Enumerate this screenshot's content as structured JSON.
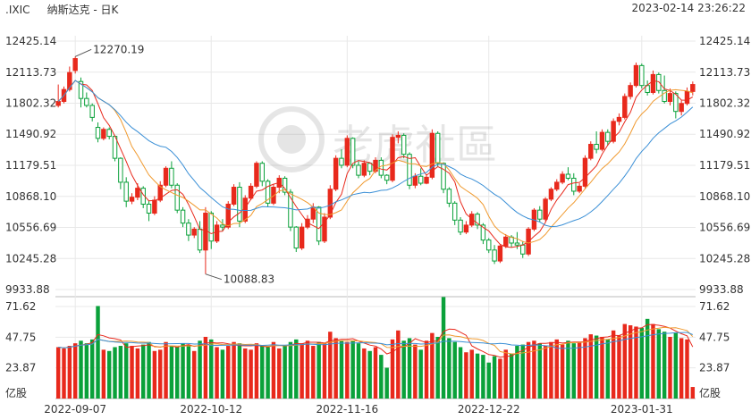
{
  "header": {
    "symbol": ".IXIC",
    "name": "纳斯达克 - 日K",
    "datetime": "2023-02-14 23:26:22"
  },
  "watermark": "老虎社區",
  "colors": {
    "up": "#e8291c",
    "down": "#0aa13a",
    "ma5": "#e8291c",
    "ma10": "#f09a2f",
    "ma20": "#3a8fd6",
    "grid": "#e8e8e8",
    "text": "#333333"
  },
  "chart_data": {
    "type": "candlestick",
    "price_axis": {
      "ticks": [
        "12425.14",
        "12113.73",
        "11802.32",
        "11490.92",
        "11179.51",
        "10868.10",
        "10556.69",
        "10245.28",
        "9933.88"
      ],
      "ylim": [
        9933.88,
        12425.14
      ]
    },
    "volume_axis": {
      "ticks": [
        "71.62",
        "47.75",
        "23.87"
      ],
      "unit": "亿股",
      "ylim": [
        0,
        71.62
      ]
    },
    "x_ticks": [
      {
        "label": "2022-09-07",
        "index": 3
      },
      {
        "label": "2022-10-12",
        "index": 27
      },
      {
        "label": "2022-11-16",
        "index": 51
      },
      {
        "label": "2022-12-22",
        "index": 76
      },
      {
        "label": "2023-01-31",
        "index": 103
      }
    ],
    "annotations": [
      {
        "text": "12270.19",
        "index": 3,
        "value": 12270.19
      },
      {
        "text": "10088.83",
        "index": 26,
        "value": 10088.83
      }
    ],
    "candles": [
      {
        "o": 11780,
        "h": 11990,
        "l": 11760,
        "c": 11820,
        "v": 40
      },
      {
        "o": 11820,
        "h": 11970,
        "l": 11800,
        "c": 11940,
        "v": 39
      },
      {
        "o": 11940,
        "h": 12170,
        "l": 11920,
        "c": 12110,
        "v": 41
      },
      {
        "o": 12130,
        "h": 12270.19,
        "l": 12100,
        "c": 12250,
        "v": 43
      },
      {
        "o": 12020,
        "h": 12060,
        "l": 11760,
        "c": 11850,
        "v": 45
      },
      {
        "o": 11850,
        "h": 11910,
        "l": 11760,
        "c": 11780,
        "v": 43
      },
      {
        "o": 11780,
        "h": 11800,
        "l": 11620,
        "c": 11660,
        "v": 46
      },
      {
        "o": 11560,
        "h": 11610,
        "l": 11410,
        "c": 11450,
        "v": 72
      },
      {
        "o": 11450,
        "h": 11560,
        "l": 11430,
        "c": 11540,
        "v": 38
      },
      {
        "o": 11540,
        "h": 11560,
        "l": 11440,
        "c": 11470,
        "v": 37
      },
      {
        "o": 11470,
        "h": 11480,
        "l": 11220,
        "c": 11250,
        "v": 40
      },
      {
        "o": 11250,
        "h": 11260,
        "l": 10940,
        "c": 11010,
        "v": 41
      },
      {
        "o": 11010,
        "h": 11060,
        "l": 10760,
        "c": 10820,
        "v": 43
      },
      {
        "o": 10820,
        "h": 10900,
        "l": 10790,
        "c": 10860,
        "v": 41
      },
      {
        "o": 10860,
        "h": 11000,
        "l": 10830,
        "c": 10950,
        "v": 39
      },
      {
        "o": 10950,
        "h": 10970,
        "l": 10750,
        "c": 10790,
        "v": 42
      },
      {
        "o": 10790,
        "h": 10830,
        "l": 10620,
        "c": 10700,
        "v": 44
      },
      {
        "o": 10700,
        "h": 10870,
        "l": 10680,
        "c": 10830,
        "v": 37
      },
      {
        "o": 10830,
        "h": 11020,
        "l": 10810,
        "c": 10980,
        "v": 38
      },
      {
        "o": 10980,
        "h": 11170,
        "l": 10960,
        "c": 11150,
        "v": 44
      },
      {
        "o": 11150,
        "h": 11220,
        "l": 10950,
        "c": 10980,
        "v": 41
      },
      {
        "o": 10980,
        "h": 11000,
        "l": 10700,
        "c": 10730,
        "v": 40
      },
      {
        "o": 10730,
        "h": 10760,
        "l": 10560,
        "c": 10600,
        "v": 43
      },
      {
        "o": 10600,
        "h": 10640,
        "l": 10420,
        "c": 10480,
        "v": 42
      },
      {
        "o": 10480,
        "h": 10560,
        "l": 10450,
        "c": 10540,
        "v": 37
      },
      {
        "o": 10540,
        "h": 10620,
        "l": 10300,
        "c": 10330,
        "v": 45
      },
      {
        "o": 10330,
        "h": 10760,
        "l": 10088.83,
        "c": 10700,
        "v": 48
      },
      {
        "o": 10700,
        "h": 10720,
        "l": 10340,
        "c": 10420,
        "v": 46
      },
      {
        "o": 10420,
        "h": 10620,
        "l": 10400,
        "c": 10580,
        "v": 40
      },
      {
        "o": 10580,
        "h": 10640,
        "l": 10520,
        "c": 10560,
        "v": 38
      },
      {
        "o": 10560,
        "h": 10820,
        "l": 10540,
        "c": 10790,
        "v": 41
      },
      {
        "o": 10790,
        "h": 10990,
        "l": 10770,
        "c": 10960,
        "v": 44
      },
      {
        "o": 10960,
        "h": 11010,
        "l": 10560,
        "c": 10620,
        "v": 43
      },
      {
        "o": 10620,
        "h": 10880,
        "l": 10600,
        "c": 10850,
        "v": 39
      },
      {
        "o": 10850,
        "h": 11000,
        "l": 10830,
        "c": 10970,
        "v": 38
      },
      {
        "o": 10970,
        "h": 11220,
        "l": 10950,
        "c": 11200,
        "v": 43
      },
      {
        "o": 11200,
        "h": 11220,
        "l": 10970,
        "c": 11020,
        "v": 41
      },
      {
        "o": 11020,
        "h": 11040,
        "l": 10760,
        "c": 10800,
        "v": 40
      },
      {
        "o": 10800,
        "h": 10990,
        "l": 10780,
        "c": 10960,
        "v": 44
      },
      {
        "o": 10960,
        "h": 11080,
        "l": 10900,
        "c": 11050,
        "v": 39
      },
      {
        "o": 11050,
        "h": 11070,
        "l": 10880,
        "c": 10910,
        "v": 41
      },
      {
        "o": 10910,
        "h": 10940,
        "l": 10520,
        "c": 10560,
        "v": 44
      },
      {
        "o": 10560,
        "h": 10570,
        "l": 10310,
        "c": 10350,
        "v": 46
      },
      {
        "o": 10350,
        "h": 10600,
        "l": 10330,
        "c": 10560,
        "v": 43
      },
      {
        "o": 10560,
        "h": 10680,
        "l": 10540,
        "c": 10640,
        "v": 45
      },
      {
        "o": 10640,
        "h": 10800,
        "l": 10600,
        "c": 10760,
        "v": 41
      },
      {
        "o": 10760,
        "h": 10770,
        "l": 10380,
        "c": 10420,
        "v": 44
      },
      {
        "o": 10420,
        "h": 10700,
        "l": 10400,
        "c": 10660,
        "v": 43
      },
      {
        "o": 10660,
        "h": 10980,
        "l": 10640,
        "c": 10940,
        "v": 52
      },
      {
        "o": 10940,
        "h": 11280,
        "l": 10920,
        "c": 11250,
        "v": 47
      },
      {
        "o": 11250,
        "h": 11340,
        "l": 11150,
        "c": 11180,
        "v": 45
      },
      {
        "o": 11180,
        "h": 11480,
        "l": 11160,
        "c": 11450,
        "v": 44
      },
      {
        "o": 11450,
        "h": 11460,
        "l": 11150,
        "c": 11180,
        "v": 45
      },
      {
        "o": 11180,
        "h": 11220,
        "l": 11050,
        "c": 11080,
        "v": 43
      },
      {
        "o": 11080,
        "h": 11230,
        "l": 11060,
        "c": 11200,
        "v": 39
      },
      {
        "o": 11200,
        "h": 11210,
        "l": 11080,
        "c": 11120,
        "v": 37
      },
      {
        "o": 11120,
        "h": 11260,
        "l": 11100,
        "c": 11230,
        "v": 40
      },
      {
        "o": 11230,
        "h": 11260,
        "l": 11050,
        "c": 11080,
        "v": 34
      },
      {
        "o": 11080,
        "h": 11090,
        "l": 10990,
        "c": 11030,
        "v": 24
      },
      {
        "o": 11030,
        "h": 11490,
        "l": 11010,
        "c": 11460,
        "v": 46
      },
      {
        "o": 11460,
        "h": 11520,
        "l": 11400,
        "c": 11480,
        "v": 53
      },
      {
        "o": 11480,
        "h": 11500,
        "l": 11250,
        "c": 11290,
        "v": 45
      },
      {
        "o": 11290,
        "h": 11310,
        "l": 10940,
        "c": 10980,
        "v": 47
      },
      {
        "o": 10980,
        "h": 11100,
        "l": 10950,
        "c": 11070,
        "v": 42
      },
      {
        "o": 11070,
        "h": 11150,
        "l": 10980,
        "c": 11000,
        "v": 38
      },
      {
        "o": 11000,
        "h": 11090,
        "l": 10990,
        "c": 11060,
        "v": 45
      },
      {
        "o": 11060,
        "h": 11540,
        "l": 11040,
        "c": 11500,
        "v": 51
      },
      {
        "o": 11500,
        "h": 11520,
        "l": 11170,
        "c": 11200,
        "v": 48
      },
      {
        "o": 11200,
        "h": 11210,
        "l": 10900,
        "c": 10940,
        "v": 79
      },
      {
        "o": 10940,
        "h": 10960,
        "l": 10760,
        "c": 10800,
        "v": 47
      },
      {
        "o": 10800,
        "h": 10820,
        "l": 10580,
        "c": 10630,
        "v": 44
      },
      {
        "o": 10630,
        "h": 10660,
        "l": 10480,
        "c": 10510,
        "v": 40
      },
      {
        "o": 10510,
        "h": 10620,
        "l": 10490,
        "c": 10580,
        "v": 36
      },
      {
        "o": 10580,
        "h": 10720,
        "l": 10560,
        "c": 10690,
        "v": 38
      },
      {
        "o": 10690,
        "h": 10710,
        "l": 10540,
        "c": 10580,
        "v": 35
      },
      {
        "o": 10580,
        "h": 10600,
        "l": 10390,
        "c": 10430,
        "v": 34
      },
      {
        "o": 10430,
        "h": 10450,
        "l": 10300,
        "c": 10330,
        "v": 28
      },
      {
        "o": 10330,
        "h": 10380,
        "l": 10190,
        "c": 10220,
        "v": 33
      },
      {
        "o": 10220,
        "h": 10390,
        "l": 10200,
        "c": 10370,
        "v": 31
      },
      {
        "o": 10370,
        "h": 10490,
        "l": 10350,
        "c": 10460,
        "v": 38
      },
      {
        "o": 10460,
        "h": 10480,
        "l": 10360,
        "c": 10400,
        "v": 35
      },
      {
        "o": 10400,
        "h": 10510,
        "l": 10340,
        "c": 10380,
        "v": 41
      },
      {
        "o": 10380,
        "h": 10420,
        "l": 10250,
        "c": 10290,
        "v": 42
      },
      {
        "o": 10290,
        "h": 10560,
        "l": 10270,
        "c": 10540,
        "v": 44
      },
      {
        "o": 10540,
        "h": 10750,
        "l": 10520,
        "c": 10730,
        "v": 45
      },
      {
        "o": 10730,
        "h": 10770,
        "l": 10610,
        "c": 10640,
        "v": 43
      },
      {
        "o": 10640,
        "h": 10860,
        "l": 10620,
        "c": 10840,
        "v": 41
      },
      {
        "o": 10840,
        "h": 10960,
        "l": 10820,
        "c": 10940,
        "v": 44
      },
      {
        "o": 10940,
        "h": 11040,
        "l": 10920,
        "c": 11010,
        "v": 46
      },
      {
        "o": 11010,
        "h": 11120,
        "l": 10990,
        "c": 11090,
        "v": 42
      },
      {
        "o": 11090,
        "h": 11160,
        "l": 11030,
        "c": 11050,
        "v": 45
      },
      {
        "o": 11050,
        "h": 11100,
        "l": 10880,
        "c": 10920,
        "v": 43
      },
      {
        "o": 10920,
        "h": 11000,
        "l": 10900,
        "c": 10970,
        "v": 44
      },
      {
        "o": 10970,
        "h": 11280,
        "l": 10950,
        "c": 11250,
        "v": 47
      },
      {
        "o": 11250,
        "h": 11420,
        "l": 11230,
        "c": 11390,
        "v": 50
      },
      {
        "o": 11390,
        "h": 11520,
        "l": 11300,
        "c": 11340,
        "v": 49
      },
      {
        "o": 11340,
        "h": 11540,
        "l": 11320,
        "c": 11510,
        "v": 48
      },
      {
        "o": 11510,
        "h": 11540,
        "l": 11380,
        "c": 11420,
        "v": 46
      },
      {
        "o": 11420,
        "h": 11650,
        "l": 11400,
        "c": 11620,
        "v": 53
      },
      {
        "o": 11620,
        "h": 11700,
        "l": 11580,
        "c": 11660,
        "v": 49
      },
      {
        "o": 11660,
        "h": 11900,
        "l": 11640,
        "c": 11870,
        "v": 58
      },
      {
        "o": 11870,
        "h": 12010,
        "l": 11840,
        "c": 11980,
        "v": 57
      },
      {
        "o": 11980,
        "h": 12210,
        "l": 11960,
        "c": 12180,
        "v": 56
      },
      {
        "o": 12180,
        "h": 12200,
        "l": 11950,
        "c": 11980,
        "v": 55
      },
      {
        "o": 11980,
        "h": 12030,
        "l": 11880,
        "c": 11910,
        "v": 62
      },
      {
        "o": 11910,
        "h": 12130,
        "l": 11890,
        "c": 12090,
        "v": 58
      },
      {
        "o": 12090,
        "h": 12110,
        "l": 11900,
        "c": 11930,
        "v": 54
      },
      {
        "o": 11930,
        "h": 12080,
        "l": 11800,
        "c": 11820,
        "v": 52
      },
      {
        "o": 11820,
        "h": 11950,
        "l": 11780,
        "c": 11900,
        "v": 48
      },
      {
        "o": 11900,
        "h": 11920,
        "l": 11650,
        "c": 11720,
        "v": 51
      },
      {
        "o": 11720,
        "h": 11830,
        "l": 11680,
        "c": 11800,
        "v": 47
      },
      {
        "o": 11800,
        "h": 11960,
        "l": 11780,
        "c": 11920,
        "v": 46
      },
      {
        "o": 11920,
        "h": 12020,
        "l": 11880,
        "c": 11990,
        "v": 9
      }
    ]
  }
}
